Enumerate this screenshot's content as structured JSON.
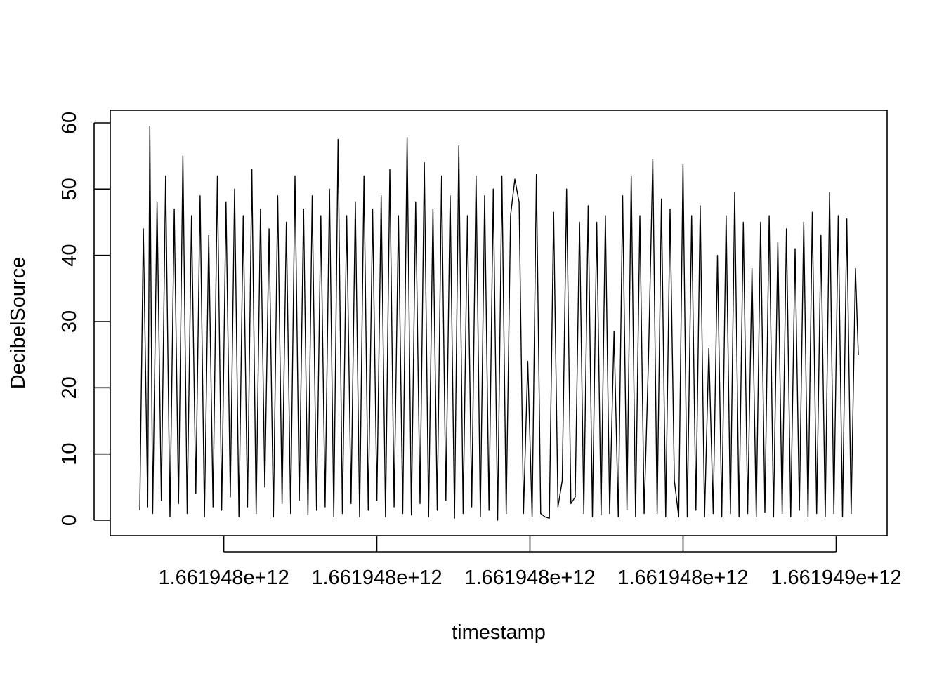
{
  "chart_data": {
    "type": "line",
    "title": "",
    "xlabel": "timestamp",
    "ylabel": "DecibelSource",
    "xlim": [
      0,
      1
    ],
    "ylim": [
      0,
      60
    ],
    "x_ticks": [
      {
        "pos": 0.1169,
        "label": "1.661948e+12"
      },
      {
        "pos": 0.3299,
        "label": "1.661948e+12"
      },
      {
        "pos": 0.543,
        "label": "1.661948e+12"
      },
      {
        "pos": 0.7561,
        "label": "1.661948e+12"
      },
      {
        "pos": 0.9692,
        "label": "1.661949e+12"
      }
    ],
    "y_ticks": [
      0,
      10,
      20,
      30,
      40,
      50,
      60
    ],
    "series": [
      {
        "color": "#000000",
        "x": [
          0.0,
          0.005,
          0.011,
          0.014,
          0.018,
          0.024,
          0.03,
          0.036,
          0.042,
          0.048,
          0.054,
          0.06,
          0.066,
          0.072,
          0.078,
          0.084,
          0.09,
          0.096,
          0.102,
          0.108,
          0.114,
          0.12,
          0.126,
          0.132,
          0.138,
          0.144,
          0.15,
          0.156,
          0.162,
          0.168,
          0.174,
          0.18,
          0.186,
          0.192,
          0.198,
          0.204,
          0.21,
          0.216,
          0.222,
          0.228,
          0.234,
          0.24,
          0.246,
          0.252,
          0.258,
          0.264,
          0.27,
          0.276,
          0.282,
          0.288,
          0.294,
          0.3,
          0.306,
          0.312,
          0.318,
          0.324,
          0.33,
          0.336,
          0.342,
          0.348,
          0.354,
          0.36,
          0.366,
          0.372,
          0.378,
          0.384,
          0.39,
          0.396,
          0.402,
          0.408,
          0.414,
          0.42,
          0.426,
          0.432,
          0.438,
          0.444,
          0.45,
          0.456,
          0.462,
          0.468,
          0.474,
          0.48,
          0.486,
          0.492,
          0.498,
          0.504,
          0.51,
          0.516,
          0.522,
          0.528,
          0.534,
          0.54,
          0.546,
          0.552,
          0.558,
          0.564,
          0.57,
          0.576,
          0.582,
          0.588,
          0.594,
          0.6,
          0.606,
          0.612,
          0.618,
          0.624,
          0.63,
          0.636,
          0.642,
          0.648,
          0.654,
          0.66,
          0.666,
          0.672,
          0.678,
          0.684,
          0.69,
          0.696,
          0.702,
          0.708,
          0.714,
          0.72,
          0.726,
          0.732,
          0.738,
          0.744,
          0.75,
          0.756,
          0.762,
          0.768,
          0.774,
          0.78,
          0.786,
          0.792,
          0.798,
          0.804,
          0.81,
          0.816,
          0.822,
          0.828,
          0.834,
          0.84,
          0.846,
          0.852,
          0.858,
          0.864,
          0.87,
          0.876,
          0.882,
          0.888,
          0.894,
          0.9,
          0.906,
          0.912,
          0.918,
          0.924,
          0.93,
          0.936,
          0.942,
          0.948,
          0.954,
          0.96,
          0.966,
          0.972,
          0.978,
          0.984,
          0.99,
          0.996,
          1.0
        ],
        "y": [
          1.5,
          44.0,
          2.0,
          59.5,
          1.0,
          48.0,
          3.0,
          52.0,
          0.5,
          47.0,
          2.5,
          55.0,
          1.0,
          46.0,
          4.0,
          49.0,
          0.5,
          43.0,
          2.0,
          52.0,
          1.5,
          48.0,
          3.5,
          50.0,
          0.5,
          46.0,
          2.0,
          53.0,
          1.0,
          47.0,
          5.0,
          44.0,
          0.5,
          49.0,
          2.5,
          45.0,
          1.0,
          52.0,
          3.0,
          47.0,
          0.8,
          49.0,
          1.5,
          46.0,
          2.0,
          50.0,
          0.5,
          57.5,
          1.0,
          46.0,
          2.5,
          48.0,
          0.5,
          52.0,
          1.5,
          47.0,
          3.0,
          49.0,
          0.5,
          53.0,
          2.0,
          46.0,
          1.0,
          57.8,
          0.8,
          48.0,
          2.5,
          54.0,
          0.5,
          47.0,
          1.5,
          52.0,
          3.0,
          49.0,
          0.3,
          56.5,
          1.0,
          46.0,
          2.0,
          52.0,
          0.5,
          49.0,
          1.5,
          50.0,
          0.0,
          52.0,
          1.0,
          46.0,
          51.5,
          48.0,
          1.0,
          24.0,
          0.5,
          52.2,
          1.0,
          0.5,
          0.3,
          46.5,
          2.0,
          6.0,
          50.0,
          2.5,
          3.5,
          45.0,
          1.0,
          47.5,
          0.5,
          45.0,
          0.8,
          46.0,
          1.0,
          28.5,
          0.5,
          49.0,
          1.5,
          52.0,
          0.5,
          46.0,
          1.0,
          24.5,
          54.5,
          1.0,
          48.5,
          0.5,
          47.0,
          6.0,
          0.5,
          53.7,
          0.5,
          46.0,
          1.5,
          47.5,
          0.5,
          26.0,
          1.0,
          40.0,
          0.5,
          46.0,
          1.0,
          49.5,
          0.5,
          45.0,
          1.0,
          38.0,
          0.5,
          45.0,
          1.2,
          46.0,
          0.5,
          42.0,
          1.0,
          44.0,
          0.5,
          41.0,
          1.5,
          45.0,
          0.5,
          46.5,
          1.0,
          43.0,
          0.5,
          49.5,
          1.0,
          46.0,
          0.5,
          45.5,
          1.0,
          38.0,
          25.0
        ]
      }
    ]
  }
}
